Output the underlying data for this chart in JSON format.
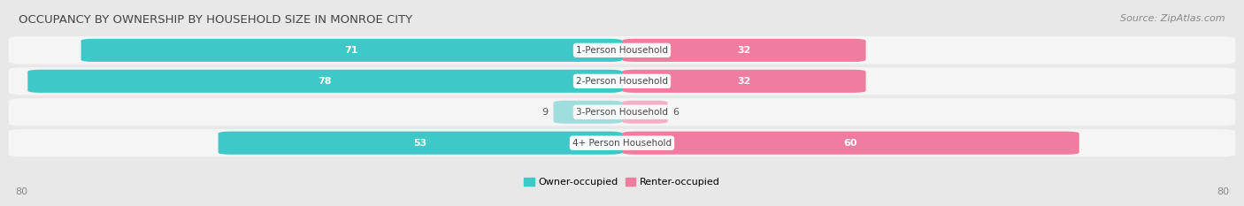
{
  "title": "OCCUPANCY BY OWNERSHIP BY HOUSEHOLD SIZE IN MONROE CITY",
  "source": "Source: ZipAtlas.com",
  "categories": [
    "1-Person Household",
    "2-Person Household",
    "3-Person Household",
    "4+ Person Household"
  ],
  "owner_values": [
    71,
    78,
    9,
    53
  ],
  "renter_values": [
    32,
    32,
    6,
    60
  ],
  "owner_color": "#3ec8c8",
  "renter_color": "#f07da0",
  "owner_color_light": "#a0dede",
  "renter_color_light": "#f5b0c8",
  "bg_color": "#e8e8e8",
  "row_bg_color": "#f5f5f5",
  "axis_max": 80,
  "legend_owner": "Owner-occupied",
  "legend_renter": "Renter-occupied",
  "title_fontsize": 9.5,
  "source_fontsize": 8,
  "value_fontsize": 8,
  "category_fontsize": 7.5,
  "axis_fontsize": 8,
  "legend_fontsize": 8
}
